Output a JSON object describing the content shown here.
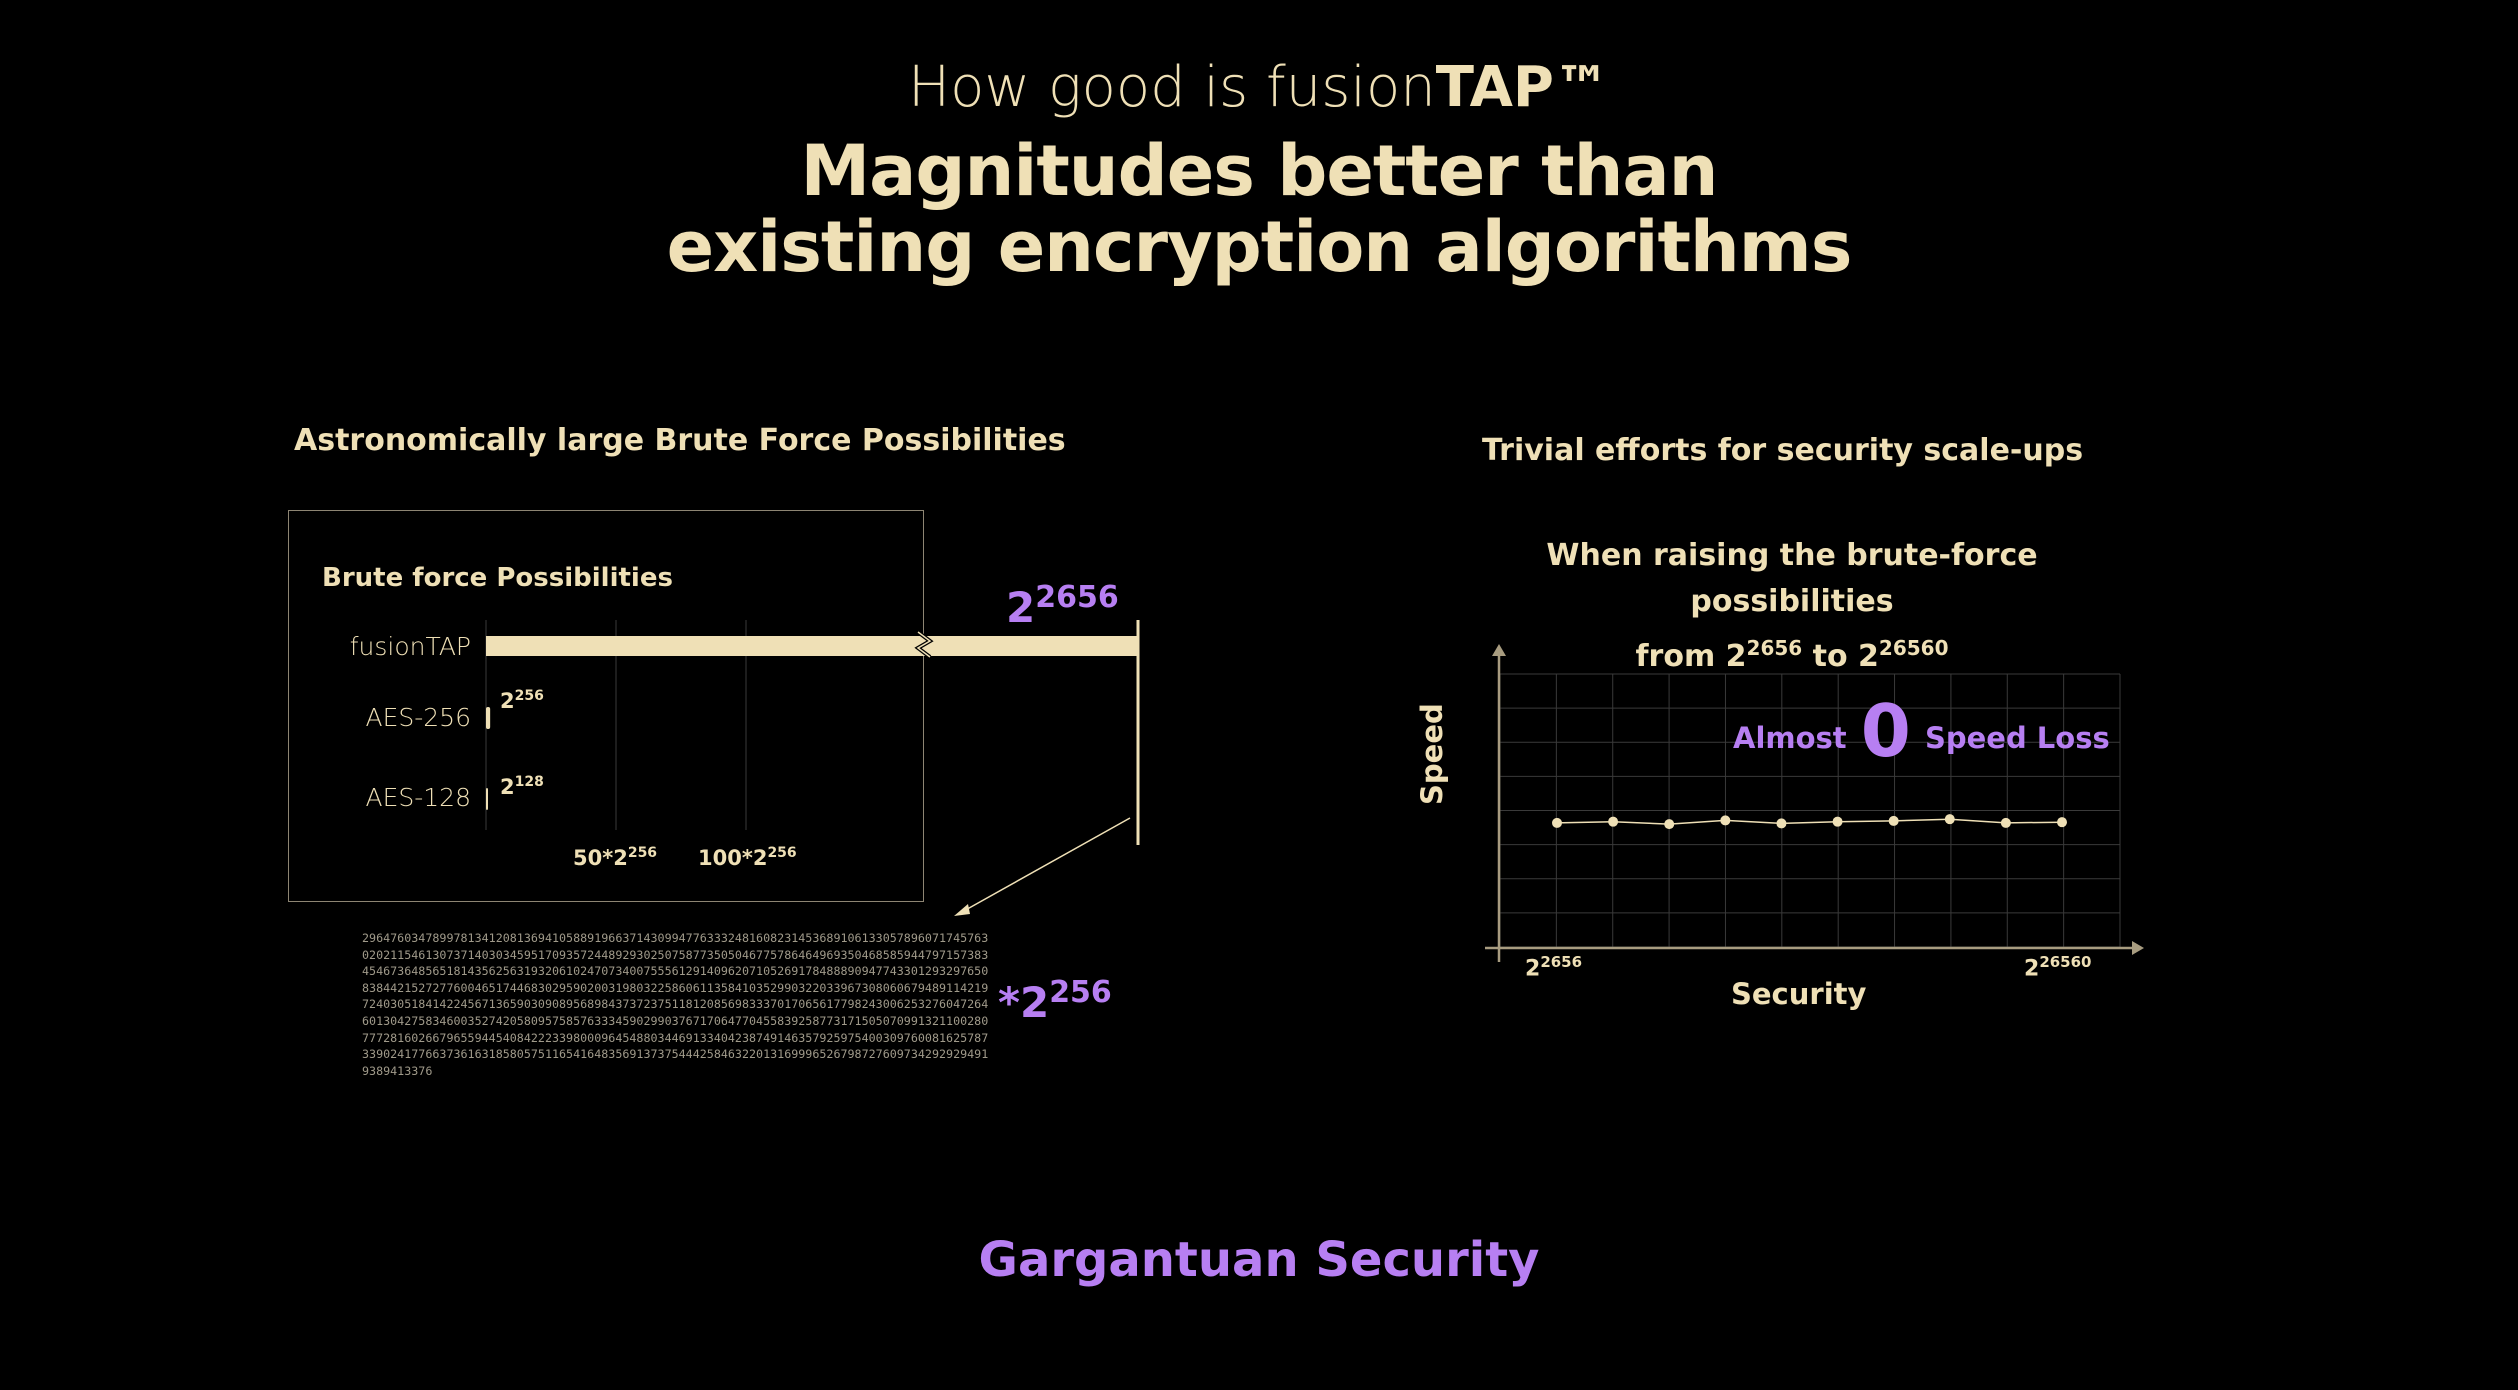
{
  "header": {
    "kicker_prefix": "How good is fusion",
    "kicker_bold": "TAP™",
    "headline_line1": "Magnitudes better than",
    "headline_line2": "existing encryption algorithms"
  },
  "left_section": {
    "title": "Astronomically large Brute Force Possibilities"
  },
  "right_section": {
    "title": "Trivial efforts for security scale-ups",
    "question_prefix": "When raising the brute-force possibilities",
    "question_from": "from ",
    "from_base": "2",
    "from_exp": "2656",
    "question_to": " to ",
    "to_base": "2",
    "to_exp": "26560"
  },
  "footer": {
    "text": "Gargantuan Security"
  },
  "colors": {
    "background": "#000000",
    "cream": "#efe0b6",
    "purple": "#b77ff2",
    "grid": "#3a3a3a"
  },
  "chart_data": [
    {
      "type": "bar",
      "orientation": "horizontal",
      "title": "Brute force Possibilities",
      "categories": [
        "fusionTAP",
        "AES-256",
        "AES-128"
      ],
      "values": [
        "2^2656",
        "2^256",
        "2^128"
      ],
      "value_labels": {
        "fusionTAP": {
          "base": "2",
          "exp": "2656"
        },
        "AES-256": {
          "base": "2",
          "exp": "256"
        },
        "AES-128": {
          "base": "2",
          "exp": "128"
        }
      },
      "x_ticks": [
        {
          "value": 50,
          "base": "50*2",
          "exp": "256"
        },
        {
          "value": 100,
          "base": "100*2",
          "exp": "256"
        }
      ],
      "axis_break": true,
      "multiplier_label": {
        "prefix": "*2",
        "exp": "256"
      },
      "multiplier_digits": "29647603478997813412081369410588919663714309947763332481608231453689106133057896071745763020211546130737140303459517093572448929302507587735050467757864649693504685859447971573834546736485651814356256319320610247073400755561291409620710526917848889094774330129329765083844215272776004651744683029590200319803225860611358410352990322033967308060679489114219724030518414224567136590309089568984373723751181208569833370170656177982430062532760472646013042758346003527420580957585763334590299037671706477045583925877317150507099132110028077728160266796559445408422233980009645488034469133404238749146357925975400309760081625787339024177663736163185805751165416483569137375444258463220131699965267987276097342929294919389413376",
      "grid": true
    },
    {
      "type": "line",
      "annotation": {
        "prefix": "Almost ",
        "highlight": "0",
        "suffix": " Speed Loss"
      },
      "xlabel": "Security",
      "ylabel": "Speed",
      "x_tick_labels": [
        {
          "base": "2",
          "exp": "2656"
        },
        {
          "base": "2",
          "exp": "26560"
        }
      ],
      "x": [
        1,
        2,
        3,
        4,
        5,
        6,
        7,
        8,
        9,
        10
      ],
      "values": [
        5.0,
        5.05,
        4.95,
        5.1,
        4.98,
        5.05,
        5.08,
        5.15,
        5.0,
        5.03
      ],
      "ylim": [
        0,
        11
      ],
      "grid": true
    }
  ]
}
